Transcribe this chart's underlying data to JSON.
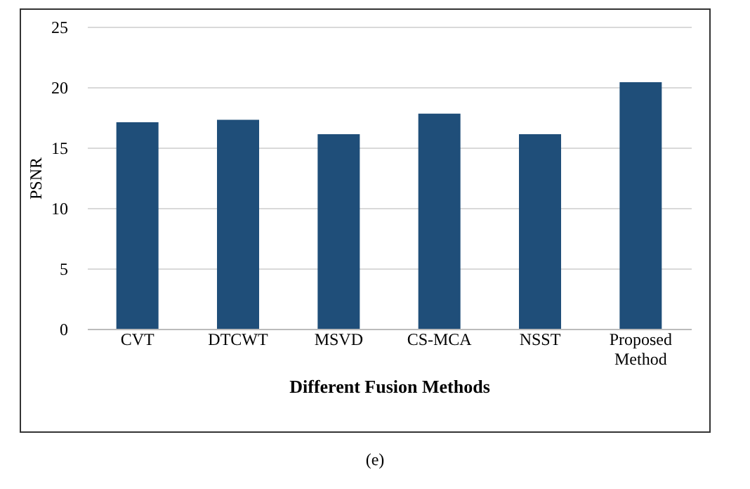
{
  "chart_data": {
    "type": "bar",
    "xlabel": "Different  Fusion Methods",
    "ylabel": "PSNR",
    "categories": [
      "CVT",
      "DTCWT",
      "MSVD",
      "CS-MCA",
      "NSST",
      "Proposed Method"
    ],
    "values": [
      17.1,
      17.3,
      16.1,
      17.8,
      16.1,
      20.4
    ],
    "color": "#1f4e79",
    "ylim": [
      0,
      25
    ],
    "yticks": [
      0,
      5,
      10,
      15,
      20,
      25
    ],
    "grid": "y",
    "annotations": [
      "(e)"
    ]
  }
}
